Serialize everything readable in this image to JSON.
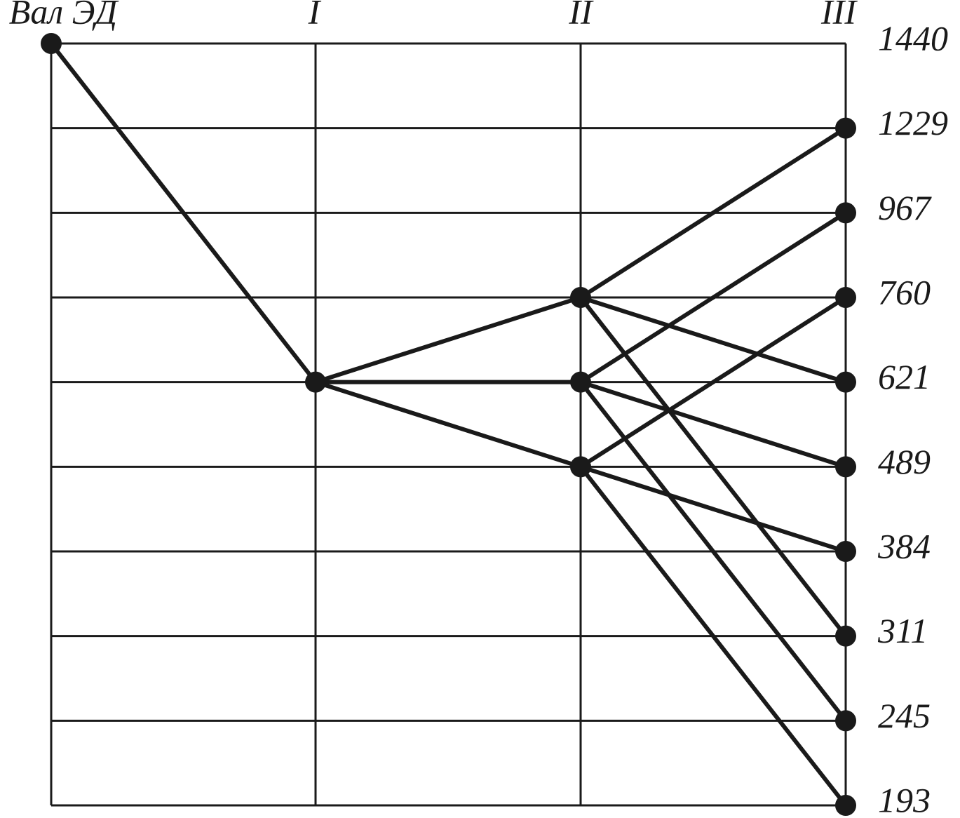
{
  "shafts": [
    "Вал ЭД",
    "I",
    "II",
    "III"
  ],
  "speeds": [
    1440,
    1229,
    967,
    760,
    621,
    489,
    384,
    311,
    245,
    193
  ]
}
